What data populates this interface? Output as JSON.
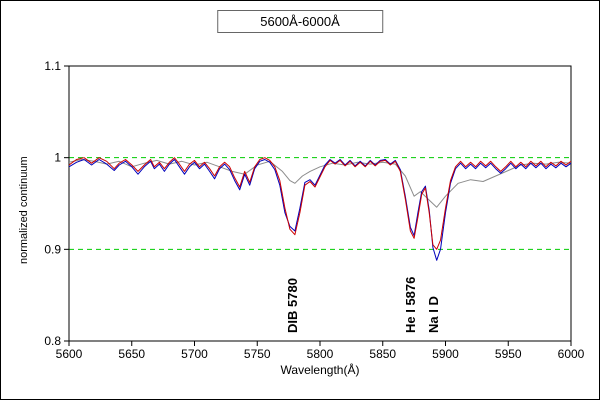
{
  "title": "5600Å-6000Å",
  "chart_data": {
    "type": "line",
    "title": "5600Å-6000Å",
    "xlabel": "Wavelength(Å)",
    "ylabel": "normalized continuum",
    "xlim": [
      5600,
      6000
    ],
    "ylim": [
      0.8,
      1.1
    ],
    "x_ticks": [
      5600,
      5650,
      5700,
      5750,
      5800,
      5850,
      5900,
      5950,
      6000
    ],
    "x_tick_labels": [
      "5600",
      "5650",
      "5700",
      "5750",
      "5800",
      "5850",
      "5900",
      "5950",
      "6000"
    ],
    "y_ticks": [
      0.8,
      0.9,
      1.0,
      1.1
    ],
    "y_tick_labels": [
      "0.8",
      "0.9",
      "1",
      "1.1"
    ],
    "grid": {
      "y_values": [
        0.9,
        1.0
      ],
      "color": "#00cc00",
      "style": "dashed"
    },
    "legend": "none",
    "annotations": [
      {
        "label": "DIB  5780",
        "x": 5778
      },
      {
        "label": "He I 5876",
        "x": 5872
      },
      {
        "label": "Na I D",
        "x": 5890
      }
    ],
    "series": [
      {
        "name": "spectrum-smooth",
        "color": "#8c8c8c",
        "points": [
          [
            5600,
            0.995
          ],
          [
            5610,
            0.998
          ],
          [
            5620,
            0.996
          ],
          [
            5630,
            0.993
          ],
          [
            5640,
            0.996
          ],
          [
            5650,
            0.99
          ],
          [
            5660,
            0.994
          ],
          [
            5670,
            0.997
          ],
          [
            5680,
            0.993
          ],
          [
            5690,
            0.996
          ],
          [
            5700,
            0.992
          ],
          [
            5710,
            0.995
          ],
          [
            5720,
            0.99
          ],
          [
            5730,
            0.985
          ],
          [
            5740,
            0.982
          ],
          [
            5750,
            0.992
          ],
          [
            5760,
            0.996
          ],
          [
            5770,
            0.985
          ],
          [
            5776,
            0.975
          ],
          [
            5780,
            0.972
          ],
          [
            5786,
            0.98
          ],
          [
            5792,
            0.985
          ],
          [
            5800,
            0.99
          ],
          [
            5810,
            0.994
          ],
          [
            5820,
            0.992
          ],
          [
            5830,
            0.995
          ],
          [
            5840,
            0.993
          ],
          [
            5850,
            0.995
          ],
          [
            5860,
            0.993
          ],
          [
            5868,
            0.98
          ],
          [
            5875,
            0.958
          ],
          [
            5880,
            0.963
          ],
          [
            5886,
            0.955
          ],
          [
            5893,
            0.946
          ],
          [
            5900,
            0.958
          ],
          [
            5910,
            0.972
          ],
          [
            5920,
            0.976
          ],
          [
            5930,
            0.974
          ],
          [
            5940,
            0.98
          ],
          [
            5950,
            0.986
          ],
          [
            5960,
            0.992
          ],
          [
            5970,
            0.994
          ],
          [
            5980,
            0.993
          ],
          [
            5990,
            0.995
          ],
          [
            6000,
            0.994
          ]
        ]
      },
      {
        "name": "spectrum-blue",
        "color": "#0000bb",
        "points": [
          [
            5600,
            0.99
          ],
          [
            5606,
            0.995
          ],
          [
            5612,
            0.998
          ],
          [
            5618,
            0.992
          ],
          [
            5624,
            0.998
          ],
          [
            5630,
            0.993
          ],
          [
            5636,
            0.986
          ],
          [
            5640,
            0.992
          ],
          [
            5645,
            0.996
          ],
          [
            5650,
            0.99
          ],
          [
            5655,
            0.982
          ],
          [
            5660,
            0.99
          ],
          [
            5665,
            0.996
          ],
          [
            5668,
            0.988
          ],
          [
            5672,
            0.993
          ],
          [
            5676,
            0.985
          ],
          [
            5680,
            0.993
          ],
          [
            5684,
            0.998
          ],
          [
            5688,
            0.99
          ],
          [
            5692,
            0.982
          ],
          [
            5696,
            0.99
          ],
          [
            5700,
            0.995
          ],
          [
            5704,
            0.988
          ],
          [
            5708,
            0.993
          ],
          [
            5712,
            0.985
          ],
          [
            5716,
            0.977
          ],
          [
            5720,
            0.988
          ],
          [
            5724,
            0.993
          ],
          [
            5728,
            0.987
          ],
          [
            5732,
            0.975
          ],
          [
            5736,
            0.965
          ],
          [
            5740,
            0.982
          ],
          [
            5744,
            0.97
          ],
          [
            5748,
            0.988
          ],
          [
            5752,
            0.996
          ],
          [
            5756,
            0.998
          ],
          [
            5760,
            0.995
          ],
          [
            5764,
            0.987
          ],
          [
            5768,
            0.97
          ],
          [
            5772,
            0.94
          ],
          [
            5776,
            0.925
          ],
          [
            5780,
            0.92
          ],
          [
            5784,
            0.945
          ],
          [
            5788,
            0.973
          ],
          [
            5792,
            0.976
          ],
          [
            5796,
            0.97
          ],
          [
            5800,
            0.981
          ],
          [
            5804,
            0.992
          ],
          [
            5808,
            0.998
          ],
          [
            5812,
            0.994
          ],
          [
            5816,
            0.998
          ],
          [
            5820,
            0.992
          ],
          [
            5824,
            0.997
          ],
          [
            5828,
            0.991
          ],
          [
            5832,
            0.996
          ],
          [
            5836,
            0.991
          ],
          [
            5840,
            0.997
          ],
          [
            5844,
            0.992
          ],
          [
            5848,
            0.997
          ],
          [
            5852,
            0.998
          ],
          [
            5856,
            0.993
          ],
          [
            5860,
            0.997
          ],
          [
            5864,
            0.987
          ],
          [
            5868,
            0.958
          ],
          [
            5872,
            0.924
          ],
          [
            5875,
            0.915
          ],
          [
            5878,
            0.94
          ],
          [
            5881,
            0.963
          ],
          [
            5884,
            0.969
          ],
          [
            5887,
            0.943
          ],
          [
            5890,
            0.902
          ],
          [
            5893,
            0.888
          ],
          [
            5896,
            0.9
          ],
          [
            5900,
            0.94
          ],
          [
            5904,
            0.972
          ],
          [
            5908,
            0.988
          ],
          [
            5912,
            0.994
          ],
          [
            5916,
            0.988
          ],
          [
            5920,
            0.993
          ],
          [
            5924,
            0.988
          ],
          [
            5928,
            0.994
          ],
          [
            5932,
            0.989
          ],
          [
            5936,
            0.994
          ],
          [
            5940,
            0.988
          ],
          [
            5944,
            0.983
          ],
          [
            5948,
            0.988
          ],
          [
            5952,
            0.994
          ],
          [
            5956,
            0.988
          ],
          [
            5960,
            0.993
          ],
          [
            5964,
            0.988
          ],
          [
            5968,
            0.994
          ],
          [
            5972,
            0.989
          ],
          [
            5976,
            0.994
          ],
          [
            5980,
            0.988
          ],
          [
            5984,
            0.993
          ],
          [
            5988,
            0.989
          ],
          [
            5992,
            0.994
          ],
          [
            5996,
            0.99
          ],
          [
            6000,
            0.994
          ]
        ]
      },
      {
        "name": "spectrum-red",
        "color": "#cc0000",
        "points": [
          [
            5600,
            0.992
          ],
          [
            5606,
            0.998
          ],
          [
            5612,
            1.0
          ],
          [
            5618,
            0.994
          ],
          [
            5624,
            1.0
          ],
          [
            5630,
            0.996
          ],
          [
            5636,
            0.988
          ],
          [
            5640,
            0.994
          ],
          [
            5645,
            0.998
          ],
          [
            5650,
            0.992
          ],
          [
            5655,
            0.985
          ],
          [
            5660,
            0.992
          ],
          [
            5665,
            0.998
          ],
          [
            5668,
            0.99
          ],
          [
            5672,
            0.995
          ],
          [
            5676,
            0.988
          ],
          [
            5680,
            0.995
          ],
          [
            5684,
            1.0
          ],
          [
            5688,
            0.993
          ],
          [
            5692,
            0.985
          ],
          [
            5696,
            0.993
          ],
          [
            5700,
            0.997
          ],
          [
            5704,
            0.99
          ],
          [
            5708,
            0.995
          ],
          [
            5712,
            0.988
          ],
          [
            5716,
            0.98
          ],
          [
            5720,
            0.99
          ],
          [
            5724,
            0.995
          ],
          [
            5728,
            0.99
          ],
          [
            5732,
            0.978
          ],
          [
            5736,
            0.968
          ],
          [
            5740,
            0.985
          ],
          [
            5744,
            0.973
          ],
          [
            5748,
            0.99
          ],
          [
            5752,
            0.998
          ],
          [
            5756,
            1.0
          ],
          [
            5760,
            0.997
          ],
          [
            5764,
            0.99
          ],
          [
            5768,
            0.975
          ],
          [
            5772,
            0.945
          ],
          [
            5776,
            0.922
          ],
          [
            5780,
            0.916
          ],
          [
            5784,
            0.94
          ],
          [
            5788,
            0.97
          ],
          [
            5792,
            0.974
          ],
          [
            5796,
            0.968
          ],
          [
            5800,
            0.979
          ],
          [
            5804,
            0.99
          ],
          [
            5808,
            0.997
          ],
          [
            5812,
            0.993
          ],
          [
            5816,
            0.997
          ],
          [
            5820,
            0.991
          ],
          [
            5824,
            0.996
          ],
          [
            5828,
            0.99
          ],
          [
            5832,
            0.995
          ],
          [
            5836,
            0.99
          ],
          [
            5840,
            0.996
          ],
          [
            5844,
            0.991
          ],
          [
            5848,
            0.996
          ],
          [
            5852,
            0.997
          ],
          [
            5856,
            0.992
          ],
          [
            5860,
            0.996
          ],
          [
            5864,
            0.985
          ],
          [
            5868,
            0.955
          ],
          [
            5872,
            0.92
          ],
          [
            5875,
            0.912
          ],
          [
            5878,
            0.935
          ],
          [
            5881,
            0.96
          ],
          [
            5884,
            0.967
          ],
          [
            5887,
            0.94
          ],
          [
            5890,
            0.905
          ],
          [
            5893,
            0.9
          ],
          [
            5896,
            0.91
          ],
          [
            5900,
            0.945
          ],
          [
            5904,
            0.975
          ],
          [
            5908,
            0.99
          ],
          [
            5912,
            0.996
          ],
          [
            5916,
            0.99
          ],
          [
            5920,
            0.995
          ],
          [
            5924,
            0.99
          ],
          [
            5928,
            0.996
          ],
          [
            5932,
            0.991
          ],
          [
            5936,
            0.996
          ],
          [
            5940,
            0.99
          ],
          [
            5944,
            0.985
          ],
          [
            5948,
            0.99
          ],
          [
            5952,
            0.996
          ],
          [
            5956,
            0.99
          ],
          [
            5960,
            0.995
          ],
          [
            5964,
            0.99
          ],
          [
            5968,
            0.996
          ],
          [
            5972,
            0.991
          ],
          [
            5976,
            0.996
          ],
          [
            5980,
            0.99
          ],
          [
            5984,
            0.995
          ],
          [
            5988,
            0.991
          ],
          [
            5992,
            0.996
          ],
          [
            5996,
            0.992
          ],
          [
            6000,
            0.996
          ]
        ]
      }
    ],
    "axis_color": "#000000",
    "background": "#ffffff"
  }
}
